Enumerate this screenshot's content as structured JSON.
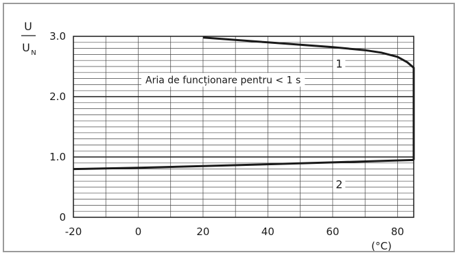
{
  "chart_data": {
    "type": "line",
    "y_label": {
      "numerator": "U",
      "denominator": "U",
      "denominator_subscript": "N"
    },
    "x_unit": "(°C)",
    "x_ticks": [
      "-20",
      "0",
      "20",
      "40",
      "60",
      "80"
    ],
    "y_ticks": [
      "0",
      "1.0",
      "2.0",
      "3.0"
    ],
    "xlim": [
      -20,
      85
    ],
    "ylim": [
      0,
      3.0
    ],
    "grid": true,
    "annotation": "Aria de funcționare pentru < 1 s",
    "series": [
      {
        "label": "1",
        "x": [
          20,
          30,
          40,
          50,
          60,
          70,
          75,
          80,
          83,
          85,
          85,
          85
        ],
        "y": [
          2.98,
          2.94,
          2.9,
          2.86,
          2.82,
          2.77,
          2.73,
          2.66,
          2.57,
          2.48,
          1.6,
          0.95
        ]
      },
      {
        "label": "2",
        "x": [
          -20,
          0,
          20,
          40,
          60,
          85
        ],
        "y": [
          0.8,
          0.82,
          0.85,
          0.88,
          0.91,
          0.95
        ]
      }
    ]
  }
}
